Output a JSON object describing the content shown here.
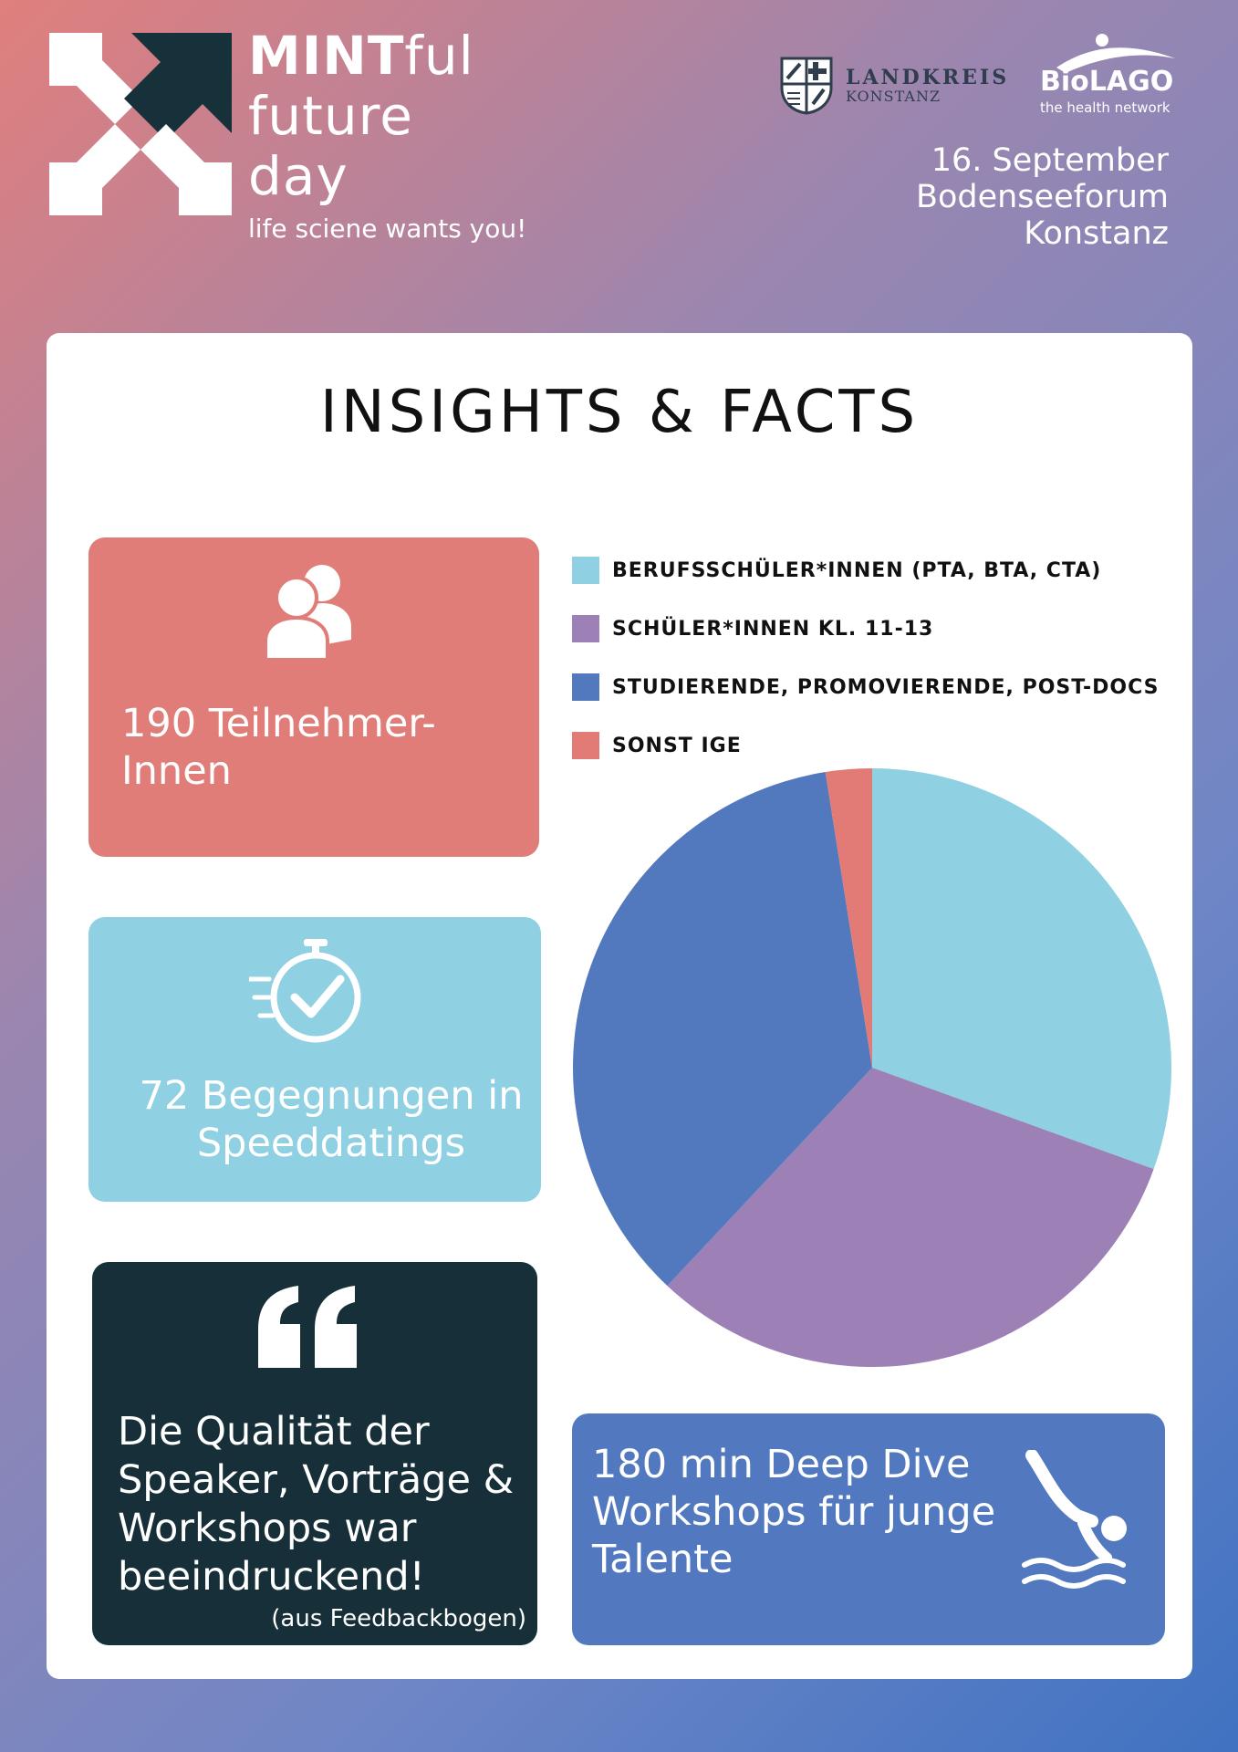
{
  "header": {
    "logo_line1_bold": "MINT",
    "logo_line1_rest": "ful",
    "logo_line2": "future",
    "logo_line3": "day",
    "tagline": "life sciene wants you!",
    "sponsor1_title": "LANDKREIS",
    "sponsor1_sub": "KONSTANZ",
    "sponsor2_title": "BioLAGO",
    "sponsor2_sub": "the health network",
    "event_date": "16. September",
    "event_venue": "Bodenseeforum",
    "event_city": "Konstanz"
  },
  "card": {
    "title": "INSIGHTS & FACTS"
  },
  "stats": {
    "participants": "190 Teilnehmer-Innen",
    "speeddating": "72 Begegnungen in Speeddatings",
    "quote": "Die Qualität der Speaker, Vorträge & Workshops war beeindruckend!",
    "quote_source": "(aus Feedbackbogen)",
    "deepdive": "180 min Deep Dive Workshops für junge Talente"
  },
  "colors": {
    "participants_bg": "#e17d78",
    "speeddating_bg": "#8fd0e2",
    "quote_bg": "#162f38",
    "deepdive_bg": "#5279c0"
  },
  "icons": {
    "participants": "users-icon",
    "speeddating": "fast-stopwatch-check-icon",
    "quote": "quote-mark-icon",
    "deepdive": "diver-swimmer-icon"
  },
  "chart_data": {
    "type": "pie",
    "title": "",
    "legend_position": "top",
    "categories": [
      "BERUFSSCHÜLER*INNEN (PTA, BTA, CTA)",
      "SCHÜLER*INNEN KL. 11-13",
      "STUDIERENDE, PROMOVIERENDE, POST-DOCS",
      "SONST IGE"
    ],
    "values": [
      30.5,
      31.5,
      35.5,
      2.5
    ],
    "unit": "%",
    "colors": [
      "#8fd0e2",
      "#9c80b6",
      "#5278be",
      "#e27b76"
    ]
  }
}
